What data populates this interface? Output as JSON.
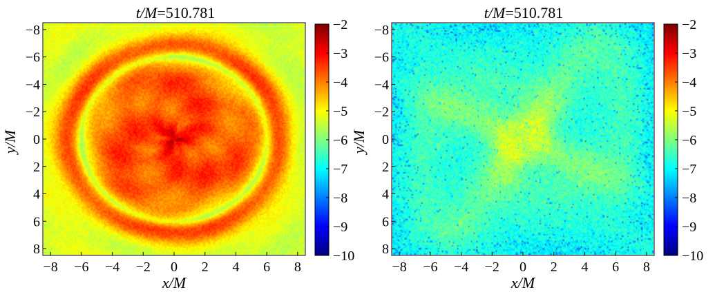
{
  "chart_data": [
    {
      "type": "heatmap",
      "title": "t/M=510.781",
      "title_parts": {
        "italic": "t/M",
        "rest": "=510.781"
      },
      "xlabel": "x/M",
      "ylabel": "y/M",
      "xlim": [
        -8.5,
        8.5
      ],
      "ylim": [
        -8.5,
        8.5
      ],
      "y_inverted": true,
      "xticks": [
        "−8",
        "−6",
        "−4",
        "−2",
        "0",
        "2",
        "4",
        "6",
        "8"
      ],
      "yticks": [
        "−8",
        "−6",
        "−4",
        "−2",
        "0",
        "2",
        "4",
        "6",
        "8"
      ],
      "colorbar": {
        "min": -10,
        "max": -2,
        "ticks": [
          "−2",
          "−3",
          "−4",
          "−5",
          "−6",
          "−7",
          "−8",
          "−9",
          "−10"
        ],
        "colormap": "jet"
      },
      "pattern": "spiral_disk",
      "features": {
        "core_value": -2.7,
        "ring_radius": 6.9,
        "ring_value": -3.6,
        "inner_value": -3.6,
        "background_value": -5.3
      }
    },
    {
      "type": "heatmap",
      "title": "t/M=510.781",
      "title_parts": {
        "italic": "t/M",
        "rest": "=510.781"
      },
      "xlabel": "x/M",
      "ylabel": "y/M",
      "xlim": [
        -8.5,
        8.5
      ],
      "ylim": [
        -8.5,
        8.5
      ],
      "y_inverted": true,
      "xticks": [
        "−8",
        "−6",
        "−4",
        "−2",
        "0",
        "2",
        "4",
        "6",
        "8"
      ],
      "yticks": [
        "−8",
        "−6",
        "−4",
        "−2",
        "0",
        "2",
        "4",
        "6",
        "8"
      ],
      "colorbar": {
        "min": -10,
        "max": -2,
        "ticks": [
          "−2",
          "−3",
          "−4",
          "−5",
          "−6",
          "−7",
          "−8",
          "−9",
          "−10"
        ],
        "colormap": "jet"
      },
      "pattern": "diffuse_cross",
      "features": {
        "center_value": -5.4,
        "background_value": -6.6,
        "edge_value": -7.0
      }
    }
  ]
}
